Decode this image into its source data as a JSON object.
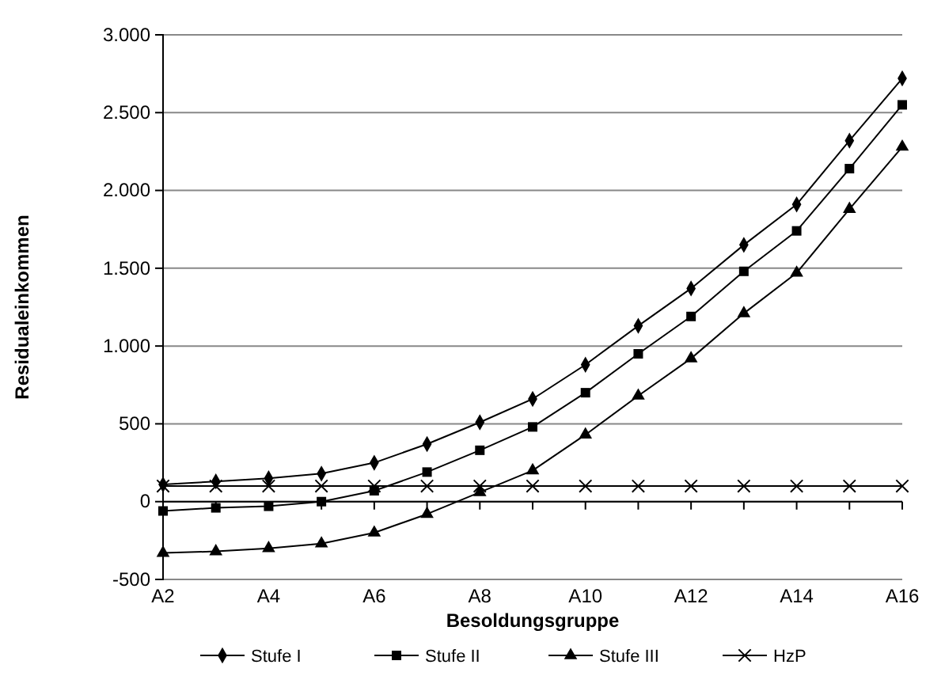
{
  "chart_data": {
    "type": "line",
    "xlabel": "Besoldungsgruppe",
    "ylabel": "Residualeinkommen",
    "categories": [
      "A2",
      null,
      "A4",
      null,
      "A6",
      null,
      "A8",
      null,
      "A10",
      null,
      "A12",
      null,
      "A14",
      null,
      "A16"
    ],
    "ylim": [
      -500,
      3000
    ],
    "yticks": [
      {
        "value": -500,
        "label": "-500"
      },
      0,
      500,
      {
        "value": 1000,
        "label": "1.000"
      },
      {
        "value": 1500,
        "label": "1.500"
      },
      {
        "value": 2000,
        "label": "2.000"
      },
      {
        "value": 2500,
        "label": "2.500"
      },
      {
        "value": 3000,
        "label": "3.000"
      }
    ],
    "grid": "y",
    "legend": "bottom",
    "series": [
      {
        "name": "Stufe I",
        "color": "#000000",
        "marker": "diamond",
        "values": [
          110,
          130,
          150,
          180,
          250,
          370,
          510,
          660,
          880,
          1130,
          1370,
          1650,
          1910,
          2320,
          2720
        ]
      },
      {
        "name": "Stufe II",
        "color": "#000000",
        "marker": "square",
        "values": [
          -60,
          -40,
          -30,
          0,
          70,
          190,
          330,
          480,
          700,
          950,
          1190,
          1480,
          1740,
          2140,
          2550
        ]
      },
      {
        "name": "Stufe III",
        "color": "#000000",
        "marker": "triangle",
        "values": [
          -330,
          -320,
          -300,
          -270,
          -200,
          -80,
          60,
          200,
          430,
          680,
          920,
          1210,
          1470,
          1880,
          2280
        ]
      },
      {
        "name": "HzP",
        "color": "#000000",
        "marker": "cross",
        "values": [
          100,
          100,
          100,
          100,
          100,
          100,
          100,
          100,
          100,
          100,
          100,
          100,
          100,
          100,
          100
        ]
      }
    ]
  }
}
